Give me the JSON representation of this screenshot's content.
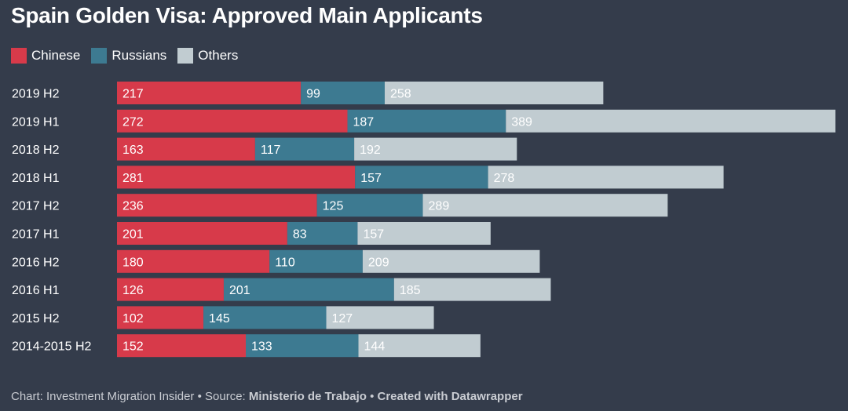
{
  "title": "Spain Golden Visa: Approved Main Applicants",
  "colors": {
    "background": "#343c4b",
    "chinese": "#d73a4a",
    "russians": "#3d7a91",
    "others": "#c1ccd1"
  },
  "chart_data": {
    "type": "bar",
    "orientation": "horizontal",
    "stacked": true,
    "title": "Spain Golden Visa: Approved Main Applicants",
    "xlabel": "",
    "ylabel": "",
    "legend_position": "top-left",
    "grid": false,
    "categories": [
      "2019 H2",
      "2019 H1",
      "2018 H2",
      "2018 H1",
      "2017 H2",
      "2017 H1",
      "2016 H2",
      "2016 H1",
      "2015 H2",
      "2014-2015 H2"
    ],
    "series": [
      {
        "name": "Chinese",
        "color": "#d73a4a",
        "values": [
          217,
          272,
          163,
          281,
          236,
          201,
          180,
          126,
          102,
          152
        ]
      },
      {
        "name": "Russians",
        "color": "#3d7a91",
        "values": [
          99,
          187,
          117,
          157,
          125,
          83,
          110,
          201,
          145,
          133
        ]
      },
      {
        "name": "Others",
        "color": "#c1ccd1",
        "values": [
          258,
          389,
          192,
          278,
          289,
          157,
          209,
          185,
          127,
          144
        ]
      }
    ],
    "xlim": [
      0,
      848
    ]
  },
  "footer": {
    "prefix": "Chart: Investment Migration Insider • Source: ",
    "source": "Ministerio de Trabajo",
    "separator": " • ",
    "credit": "Created with Datawrapper"
  }
}
